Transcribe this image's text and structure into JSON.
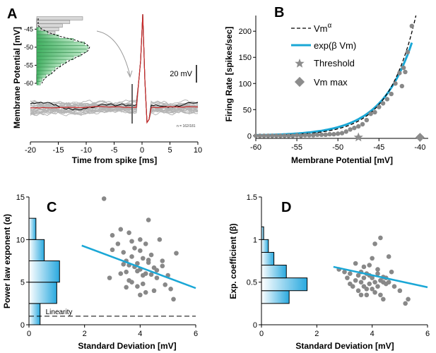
{
  "chart_data": [
    {
      "panel": "A",
      "type": "line",
      "xlabel": "Time from spike [ms]",
      "ylabel": "Membrane Potential [mV]",
      "xticks": [
        -20,
        -15,
        -10,
        -5,
        0,
        5,
        10
      ],
      "xlim": [
        -20,
        10
      ],
      "scale_bar": "20 mV",
      "note": "n = 162/181",
      "inset": {
        "type": "histogram",
        "yticks": [
          -45,
          -50,
          -55,
          -60
        ],
        "bins_mV": [
          -42,
          -43,
          -44,
          -45,
          -46,
          -47,
          -48,
          -49,
          -50,
          -51,
          -52,
          -53,
          -54,
          -55,
          -56,
          -57,
          -58,
          -59,
          -60
        ],
        "gray_counts": [
          25,
          18,
          14,
          12,
          10,
          8,
          6,
          4,
          3,
          2,
          2,
          1,
          1,
          1,
          1,
          1,
          0,
          0,
          0
        ],
        "green_counts": [
          0,
          0,
          0,
          2,
          6,
          12,
          20,
          26,
          28,
          27,
          24,
          20,
          16,
          13,
          10,
          8,
          5,
          3,
          2
        ]
      }
    },
    {
      "panel": "B",
      "type": "scatter",
      "xlabel": "Membrane Potential [mV]",
      "ylabel": "Firing Rate [spikes/sec]",
      "xlim": [
        -60,
        -39
      ],
      "ylim": [
        -5,
        230
      ],
      "xticks": [
        -60,
        -55,
        -50,
        -45,
        -40
      ],
      "yticks": [
        0,
        50,
        100,
        150,
        200
      ],
      "legend": {
        "power": "Vm",
        "power_exp": "α",
        "exp": "exp(β Vm)",
        "threshold": "Threshold",
        "vmax": "Vm max"
      },
      "threshold_point": {
        "x": -47.5,
        "y": -3
      },
      "vmax_point": {
        "x": -40,
        "y": -3
      },
      "points": {
        "x": [
          -60,
          -59.5,
          -59,
          -58.5,
          -58,
          -57.5,
          -57,
          -56.5,
          -56,
          -55.5,
          -55,
          -54.5,
          -54,
          -53.5,
          -53,
          -52.5,
          -52,
          -51.5,
          -51,
          -50.5,
          -50,
          -49.5,
          -49,
          -48.5,
          -48,
          -47.5,
          -47,
          -46.5,
          -46,
          -45.5,
          -45,
          -44.5,
          -44,
          -43.5,
          -43,
          -42.5,
          -42,
          -41.5,
          -41,
          -42.2,
          -41.8
        ],
        "y": [
          0,
          0,
          0,
          0,
          0,
          0,
          0,
          0,
          0,
          0,
          1,
          0,
          1,
          1,
          1,
          2,
          2,
          2,
          3,
          3,
          4,
          5,
          8,
          12,
          15,
          18,
          22,
          30,
          42,
          45,
          55,
          62,
          70,
          80,
          100,
          120,
          130,
          160,
          210,
          95,
          122
        ]
      },
      "power_fit": {
        "x0": -60,
        "x1": -40.5,
        "k": 0.3
      },
      "exp_fit": {
        "x0": -60,
        "x1": -41,
        "k": 0.265
      }
    },
    {
      "panel": "C",
      "type": "scatter",
      "xlabel": "Standard Deviation [mV]",
      "ylabel": "Power law exponent (α)",
      "xlim": [
        0,
        6
      ],
      "ylim": [
        0,
        15
      ],
      "xticks": [
        0,
        2,
        4,
        6
      ],
      "yticks": [
        0,
        5,
        10,
        15
      ],
      "linearity_label": "Linearity",
      "linearity_y": 1,
      "hist": {
        "bin_edges": [
          0,
          2.5,
          5,
          7.5,
          10,
          12.5
        ],
        "counts": [
          0.4,
          1.0,
          1.1,
          0.55,
          0.25
        ]
      },
      "points": {
        "x": [
          2.7,
          3.0,
          3.2,
          3.3,
          3.4,
          3.5,
          3.5,
          3.6,
          3.6,
          3.7,
          3.7,
          3.8,
          3.8,
          3.9,
          3.9,
          4.0,
          4.0,
          4.0,
          4.1,
          4.1,
          4.2,
          4.2,
          4.3,
          4.3,
          4.4,
          4.5,
          4.5,
          4.6,
          4.7,
          4.8,
          4.9,
          5.0,
          5.2,
          5.3,
          3.6,
          3.9,
          4.1,
          4.4,
          3.0,
          3.4,
          4.6,
          4.2,
          3.7,
          5.1,
          2.9,
          3.3,
          4.0,
          4.8,
          3.5,
          4.3
        ],
        "y": [
          14.8,
          10.5,
          9.5,
          11.2,
          8.5,
          7.5,
          6.2,
          10.8,
          7.0,
          8.0,
          5.0,
          6.8,
          9.0,
          7.2,
          4.5,
          8.7,
          6.5,
          3.5,
          7.8,
          5.8,
          9.5,
          6.0,
          12.3,
          7.3,
          8.2,
          6.7,
          4.0,
          5.5,
          10.0,
          7.5,
          4.7,
          5.8,
          3.0,
          8.4,
          5.2,
          6.3,
          4.8,
          5.9,
          8.8,
          7.1,
          6.4,
          3.8,
          9.8,
          4.2,
          5.5,
          6.0,
          10.0,
          6.9,
          4.4,
          7.6
        ]
      },
      "fit": {
        "x": [
          1.9,
          6.0
        ],
        "y": [
          9.3,
          4.3
        ]
      }
    },
    {
      "panel": "D",
      "type": "scatter",
      "xlabel": "Standard Deviation [mV]",
      "ylabel": "Exp. coefficient (β)",
      "xlim": [
        0,
        6
      ],
      "ylim": [
        0,
        1.5
      ],
      "xticks": [
        0,
        2,
        4,
        6
      ],
      "yticks": [
        0,
        0.5,
        1,
        1.5
      ],
      "hist": {
        "bin_edges": [
          0.25,
          0.4,
          0.55,
          0.7,
          0.85,
          1.0,
          1.15
        ],
        "counts": [
          1.0,
          1.65,
          0.9,
          0.45,
          0.25,
          0.08
        ]
      },
      "points": {
        "x": [
          2.8,
          3.0,
          3.1,
          3.2,
          3.3,
          3.4,
          3.5,
          3.5,
          3.6,
          3.6,
          3.7,
          3.7,
          3.8,
          3.8,
          3.9,
          3.9,
          4.0,
          4.0,
          4.1,
          4.1,
          4.2,
          4.2,
          4.3,
          4.3,
          4.4,
          4.4,
          4.5,
          4.6,
          4.7,
          4.8,
          5.0,
          5.2,
          5.3,
          3.4,
          3.6,
          4.2,
          3.9,
          4.1,
          4.5,
          3.2,
          3.8,
          4.0,
          4.3,
          4.6,
          3.7,
          4.4
        ],
        "y": [
          0.65,
          0.62,
          0.55,
          0.48,
          0.45,
          0.52,
          0.58,
          0.4,
          0.5,
          0.62,
          0.45,
          0.55,
          0.35,
          0.6,
          0.48,
          0.7,
          0.42,
          0.55,
          0.95,
          0.5,
          0.45,
          0.6,
          1.02,
          0.52,
          0.5,
          0.3,
          0.55,
          0.8,
          0.62,
          0.45,
          0.4,
          0.25,
          0.3,
          0.72,
          0.35,
          0.65,
          0.58,
          0.38,
          0.48,
          0.6,
          0.42,
          0.78,
          0.35,
          0.5,
          0.68,
          0.56
        ]
      },
      "fit": {
        "x": [
          2.6,
          6.0
        ],
        "y": [
          0.68,
          0.44
        ]
      }
    }
  ],
  "panels": {
    "a": "A",
    "b": "B",
    "c": "C",
    "d": "D"
  },
  "colors": {
    "gray": "#888888",
    "trace_gray": "#b5b5b5",
    "blue": "#1aa7d6",
    "red": "#cc2a2a",
    "green": "#7ecb8e",
    "dark": "#000000"
  }
}
